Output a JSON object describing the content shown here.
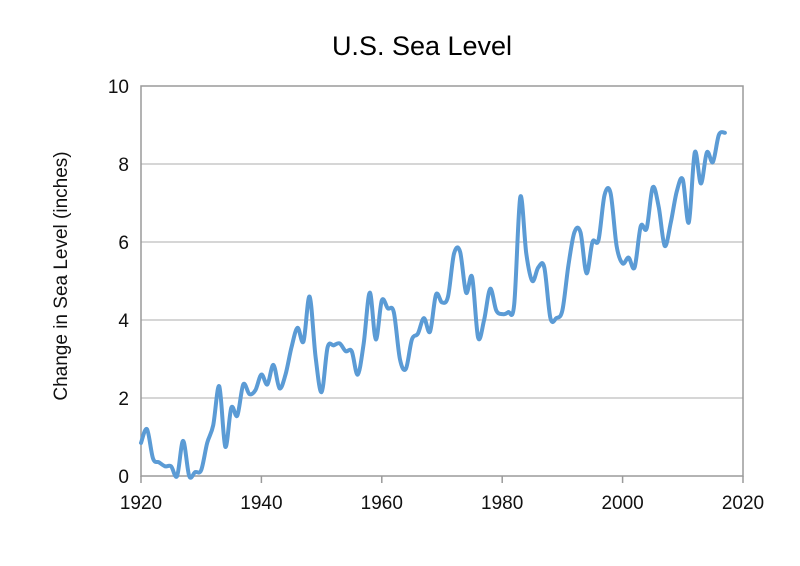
{
  "chart_data": {
    "type": "line",
    "title": "U.S. Sea Level",
    "xlabel": "",
    "ylabel": "Change in Sea Level (inches)",
    "xlim": [
      1920,
      2020
    ],
    "ylim": [
      0,
      10
    ],
    "xticks": [
      1920,
      1940,
      1960,
      1980,
      2000,
      2020
    ],
    "yticks": [
      0,
      2,
      4,
      6,
      8,
      10
    ],
    "grid": "horizontal",
    "legend": "none",
    "series": [
      {
        "color": "#5b9bd5",
        "x": [
          1920,
          1921,
          1922,
          1923,
          1924,
          1925,
          1926,
          1927,
          1928,
          1929,
          1930,
          1931,
          1932,
          1933,
          1934,
          1935,
          1936,
          1937,
          1938,
          1939,
          1940,
          1941,
          1942,
          1943,
          1944,
          1945,
          1946,
          1947,
          1948,
          1949,
          1950,
          1951,
          1952,
          1953,
          1954,
          1955,
          1956,
          1957,
          1958,
          1959,
          1960,
          1961,
          1962,
          1963,
          1964,
          1965,
          1966,
          1967,
          1968,
          1969,
          1970,
          1971,
          1972,
          1973,
          1974,
          1975,
          1976,
          1977,
          1978,
          1979,
          1980,
          1981,
          1982,
          1983,
          1984,
          1985,
          1986,
          1987,
          1988,
          1989,
          1990,
          1991,
          1992,
          1993,
          1994,
          1995,
          1996,
          1997,
          1998,
          1999,
          2000,
          2001,
          2002,
          2003,
          2004,
          2005,
          2006,
          2007,
          2008,
          2009,
          2010,
          2011,
          2012,
          2013,
          2014,
          2015,
          2016,
          2017
        ],
        "y": [
          0.85,
          1.2,
          0.45,
          0.35,
          0.25,
          0.25,
          0.0,
          0.9,
          0.0,
          0.1,
          0.15,
          0.85,
          1.3,
          2.3,
          0.75,
          1.75,
          1.55,
          2.35,
          2.1,
          2.2,
          2.6,
          2.35,
          2.85,
          2.25,
          2.6,
          3.3,
          3.8,
          3.45,
          4.6,
          3.05,
          2.15,
          3.3,
          3.35,
          3.4,
          3.2,
          3.2,
          2.6,
          3.4,
          4.7,
          3.5,
          4.5,
          4.3,
          4.2,
          3.0,
          2.75,
          3.5,
          3.65,
          4.05,
          3.7,
          4.65,
          4.45,
          4.6,
          5.7,
          5.75,
          4.7,
          5.1,
          3.55,
          4.0,
          4.8,
          4.25,
          4.15,
          4.2,
          4.4,
          7.15,
          5.7,
          5.0,
          5.35,
          5.35,
          4.05,
          4.05,
          4.25,
          5.4,
          6.25,
          6.25,
          5.2,
          6.0,
          6.05,
          7.2,
          7.25,
          5.9,
          5.45,
          5.6,
          5.35,
          6.4,
          6.35,
          7.4,
          6.9,
          5.9,
          6.5,
          7.3,
          7.6,
          6.5,
          8.3,
          7.5,
          8.3,
          8.05,
          8.75,
          8.8
        ]
      }
    ]
  }
}
